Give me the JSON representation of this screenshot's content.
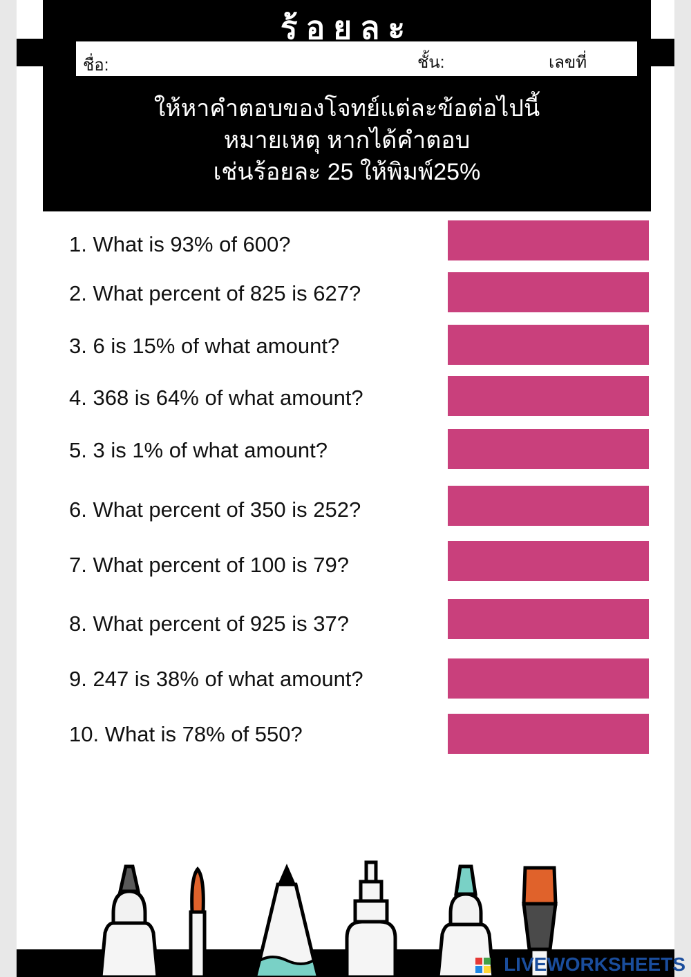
{
  "header": {
    "title": "ร้อยละ",
    "name_label": "ชื่อ:",
    "class_label": "ชั้น:",
    "number_label": "เลขที่",
    "instructions": [
      "ให้หาคำตอบของโจทย์แต่ละข้อต่อไปนี้",
      "หมายเหตุ หากได้คำตอบ",
      "เช่นร้อยละ 25 ให้พิมพ์25%"
    ]
  },
  "questions": [
    {
      "text": "1.   What is 93% of 600?",
      "answer": ""
    },
    {
      "text": "2.   What percent of 825 is 627?",
      "answer": ""
    },
    {
      "text": "3.   6 is 15% of what amount?",
      "answer": ""
    },
    {
      "text": "4.   368 is 64% of what amount?",
      "answer": ""
    },
    {
      "text": "5.   3 is 1% of what amount?",
      "answer": ""
    },
    {
      "text": "6. What percent of 350 is 252?",
      "answer": ""
    },
    {
      "text": "7. What percent of 100 is 79?",
      "answer": ""
    },
    {
      "text": "8.   What percent of 925 is 37?",
      "answer": ""
    },
    {
      "text": "9.   247 is 38% of what amount?",
      "answer": ""
    },
    {
      "text": "10. What is 78% of 550?",
      "answer": ""
    }
  ],
  "colors": {
    "answer_box": "#c9407c",
    "header_bg": "#000000",
    "marker_tip_gray": "#5a5a5a",
    "brush_tip_orange": "#e0622b",
    "marker_tip_teal": "#79d1c6",
    "watermark": "#1a4d9c"
  },
  "icons": [
    "marker-icon",
    "paintbrush-icon",
    "pencil-icon",
    "technical-pen-icon",
    "highlighter-icon",
    "flat-brush-icon"
  ],
  "watermark": "LIVEWORKSHEETS"
}
